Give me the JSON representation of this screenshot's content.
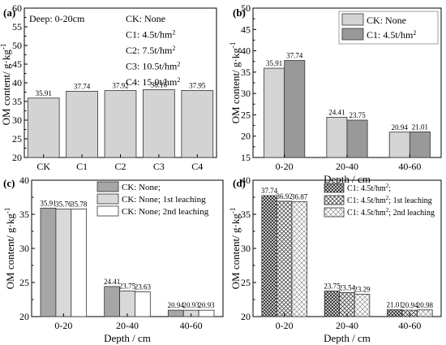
{
  "chart_data": [
    {
      "panel": "(a)",
      "type": "bar",
      "categories": [
        "CK",
        "C1",
        "C2",
        "C3",
        "C4"
      ],
      "values": [
        35.91,
        37.74,
        37.92,
        38.16,
        37.95
      ],
      "value_labels": [
        "35.91",
        "37.74",
        "37.92",
        "38.16",
        "37.95"
      ],
      "ylim": [
        20,
        60
      ],
      "yticks": [
        20,
        25,
        30,
        35,
        40,
        45,
        50,
        55,
        60
      ],
      "ylabel": "OM content/ g·kg",
      "ylabel_sup": "-1",
      "xlabel": "",
      "annotation": "Deep: 0-20cm",
      "legend_text": [
        {
          "prefix": "CK: None",
          "sup": ""
        },
        {
          "prefix": "C1: 4.5t/hm",
          "sup": "2"
        },
        {
          "prefix": "C2: 7.5t/hm",
          "sup": "2"
        },
        {
          "prefix": "C3: 10.5t/hm",
          "sup": "2"
        },
        {
          "prefix": "C4: 15.0t/hm",
          "sup": "2"
        }
      ],
      "colors": {
        "bar": "#d3d3d3",
        "edge": "#333333"
      }
    },
    {
      "panel": "(b)",
      "type": "bar",
      "categories": [
        "0-20",
        "20-40",
        "40-60"
      ],
      "series": [
        {
          "name": "CK: None",
          "values": [
            35.91,
            24.41,
            20.94
          ],
          "labels": [
            "35.91",
            "24.41",
            "20.94"
          ],
          "fill": "#d4d4d4"
        },
        {
          "name": "C1: 4.5t/hm",
          "name_sup": "2",
          "values": [
            37.74,
            23.75,
            21.01
          ],
          "labels": [
            "37.74",
            "23.75",
            "21.01"
          ],
          "fill": "#999999"
        }
      ],
      "ylim": [
        15,
        50
      ],
      "yticks": [
        15,
        20,
        25,
        30,
        35,
        40,
        45,
        50
      ],
      "ylabel": "OM content/ g·kg",
      "ylabel_sup": "-1",
      "xlabel": "Depth / cm",
      "legend": "top-right"
    },
    {
      "panel": "(c)",
      "type": "bar",
      "categories": [
        "0-20",
        "20-40",
        "40-60"
      ],
      "series": [
        {
          "name": "CK: None;",
          "values": [
            35.91,
            24.41,
            20.94
          ],
          "labels": [
            "35.91",
            "24.41",
            "20.94"
          ],
          "fill": "#a6a6a6"
        },
        {
          "name": "CK: None; 1st leaching",
          "values": [
            35.76,
            23.75,
            20.93
          ],
          "labels": [
            "35.76",
            "23.75",
            "20.93"
          ],
          "fill": "#d9d9d9"
        },
        {
          "name": "CK: None; 2nd leaching",
          "values": [
            35.78,
            23.63,
            20.93
          ],
          "labels": [
            "35.78",
            "23.63",
            "20.93"
          ],
          "fill": "#ffffff"
        }
      ],
      "ylim": [
        20,
        40
      ],
      "yticks": [
        20,
        25,
        30,
        35,
        40
      ],
      "ylabel": "OM content/ g·kg",
      "ylabel_sup": "-1",
      "xlabel": "Depth / cm",
      "legend": "top-right"
    },
    {
      "panel": "(d)",
      "type": "bar",
      "categories": [
        "0-20",
        "20-40",
        "40-60"
      ],
      "series": [
        {
          "name": "C1: 4.5t/hm",
          "name_sup": "2",
          "name_suffix": ";",
          "values": [
            37.74,
            23.75,
            21.01
          ],
          "labels": [
            "37.74",
            "23.75",
            "21.01"
          ],
          "pattern": "dense"
        },
        {
          "name": "C1: 4.5t/hm",
          "name_sup": "2",
          "name_suffix": "; 1st leaching",
          "values": [
            36.92,
            23.54,
            20.94
          ],
          "labels": [
            "36.92",
            "23.54",
            "20.94"
          ],
          "pattern": "medium"
        },
        {
          "name": "C1: 4.5t/hm",
          "name_sup": "2",
          "name_suffix": "; 2nd leaching",
          "values": [
            36.87,
            23.29,
            20.98
          ],
          "labels": [
            "36.87",
            "23.29",
            "20.98"
          ],
          "pattern": "light"
        }
      ],
      "ylim": [
        20,
        40
      ],
      "yticks": [
        20,
        25,
        30,
        35,
        40
      ],
      "ylabel": "OM content/ g·kg",
      "ylabel_sup": "-1",
      "xlabel": "Depth / cm",
      "legend": "top-right"
    }
  ]
}
